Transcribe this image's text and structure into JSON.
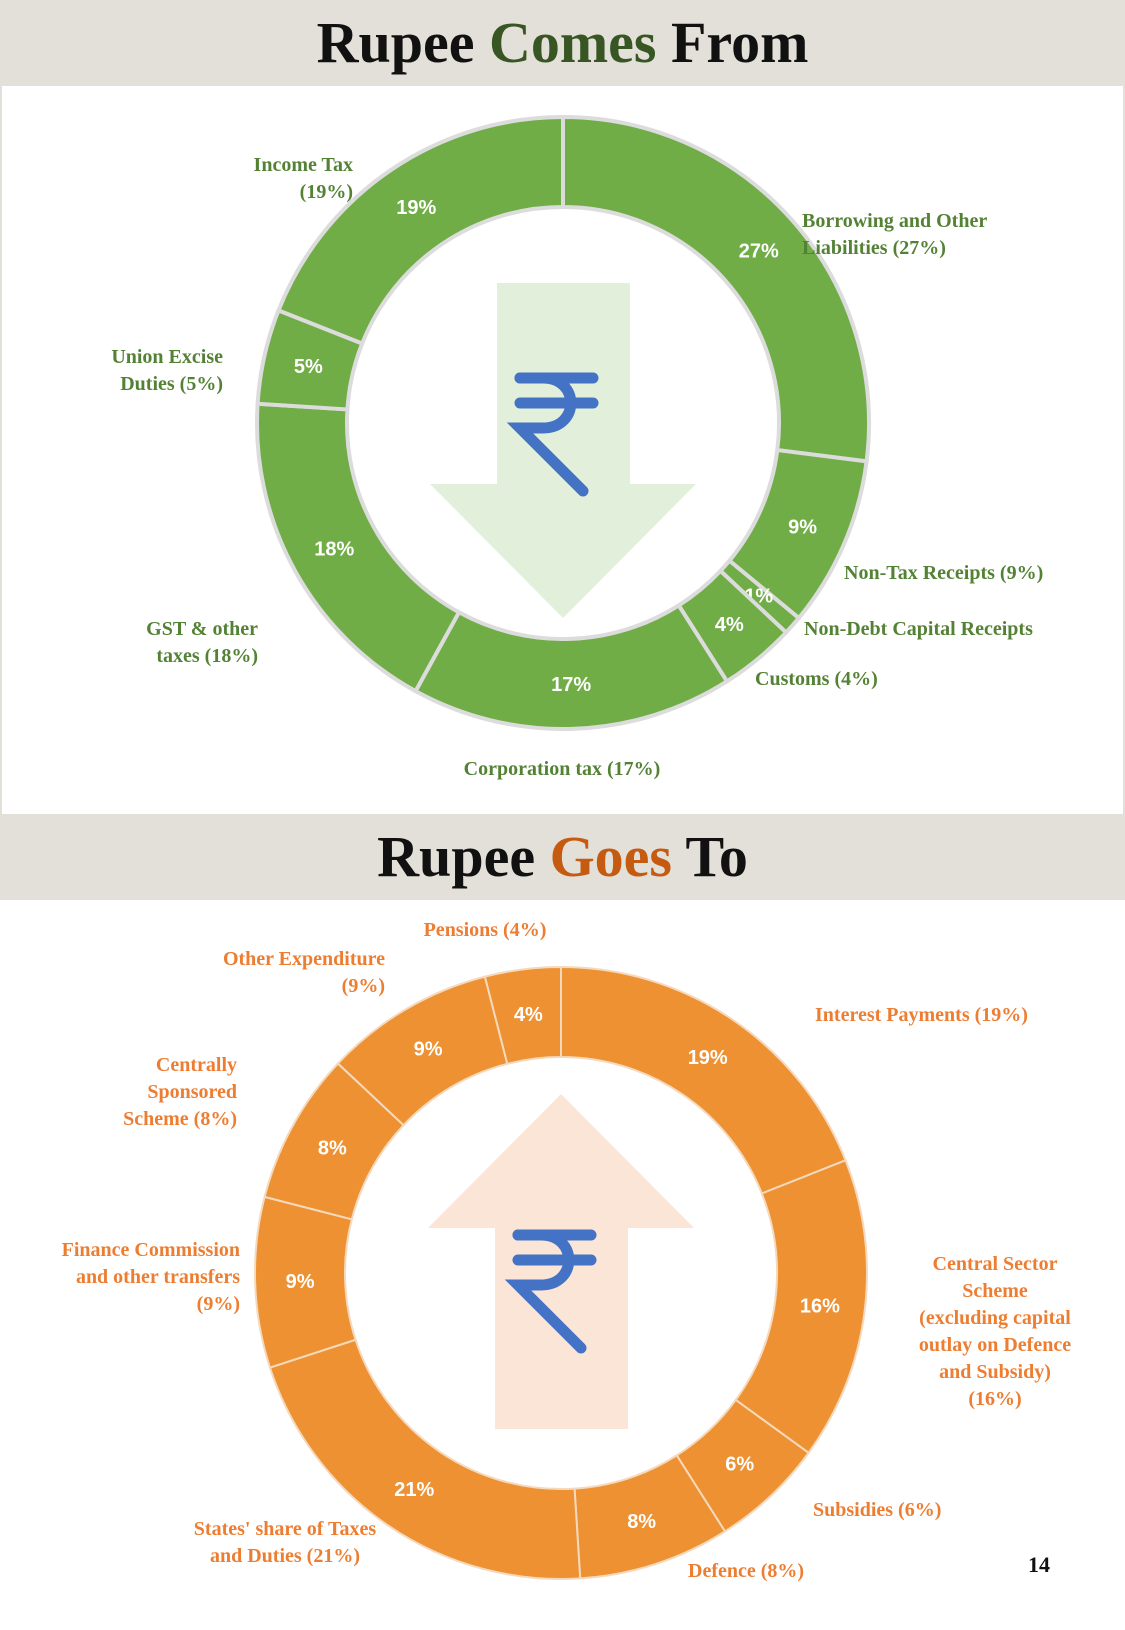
{
  "header_top": {
    "word1": "Rupee",
    "word2": "Comes",
    "word3": "From",
    "accent": "#375623"
  },
  "header_bottom": {
    "word1": "Rupee",
    "word2": "Goes",
    "word3": "To",
    "accent": "#c55a11"
  },
  "page_number": "14",
  "icons": {
    "top": [
      "arrow-down-icon",
      "rupee-icon"
    ],
    "bottom": [
      "arrow-up-icon",
      "rupee-icon"
    ]
  },
  "chart_data": [
    {
      "type": "donut",
      "title": "Rupee Comes From",
      "ring_color": "#70ad47",
      "label_color": "#548235",
      "series": [
        {
          "label": "Borrowing and Other\nLiabilities (27%)",
          "value": 27,
          "value_label": "27%"
        },
        {
          "label": "Non-Tax Receipts (9%)",
          "value": 9,
          "value_label": "9%"
        },
        {
          "label": "Non-Debt Capital Receipts",
          "value": 1,
          "value_label": "1%"
        },
        {
          "label": "Customs (4%)",
          "value": 4,
          "value_label": "4%"
        },
        {
          "label": "Corporation tax (17%)",
          "value": 17,
          "value_label": "17%"
        },
        {
          "label": "GST & other\ntaxes (18%)",
          "value": 18,
          "value_label": "18%"
        },
        {
          "label": "Union Excise\nDuties (5%)",
          "value": 5,
          "value_label": "5%"
        },
        {
          "label": "Income Tax\n(19%)",
          "value": 19,
          "value_label": "19%"
        }
      ]
    },
    {
      "type": "donut",
      "title": "Rupee Goes To",
      "ring_color": "#ed9132",
      "label_color": "#ed7d31",
      "series": [
        {
          "label": "Interest Payments (19%)",
          "value": 19,
          "value_label": "19%"
        },
        {
          "label": "Central Sector\nScheme\n(excluding capital\noutlay on Defence\nand Subsidy)\n(16%)",
          "value": 16,
          "value_label": "16%"
        },
        {
          "label": "Subsidies (6%)",
          "value": 6,
          "value_label": "6%"
        },
        {
          "label": "Defence (8%)",
          "value": 8,
          "value_label": "8%"
        },
        {
          "label": "States' share of Taxes\nand Duties (21%)",
          "value": 21,
          "value_label": "21%"
        },
        {
          "label": "Finance Commission\nand other transfers\n(9%)",
          "value": 9,
          "value_label": "9%"
        },
        {
          "label": "Centrally\nSponsored\nScheme (8%)",
          "value": 8,
          "value_label": "8%"
        },
        {
          "label": "Other Expenditure\n(9%)",
          "value": 9,
          "value_label": "9%"
        },
        {
          "label": "Pensions (4%)",
          "value": 4,
          "value_label": "4%"
        }
      ]
    }
  ]
}
